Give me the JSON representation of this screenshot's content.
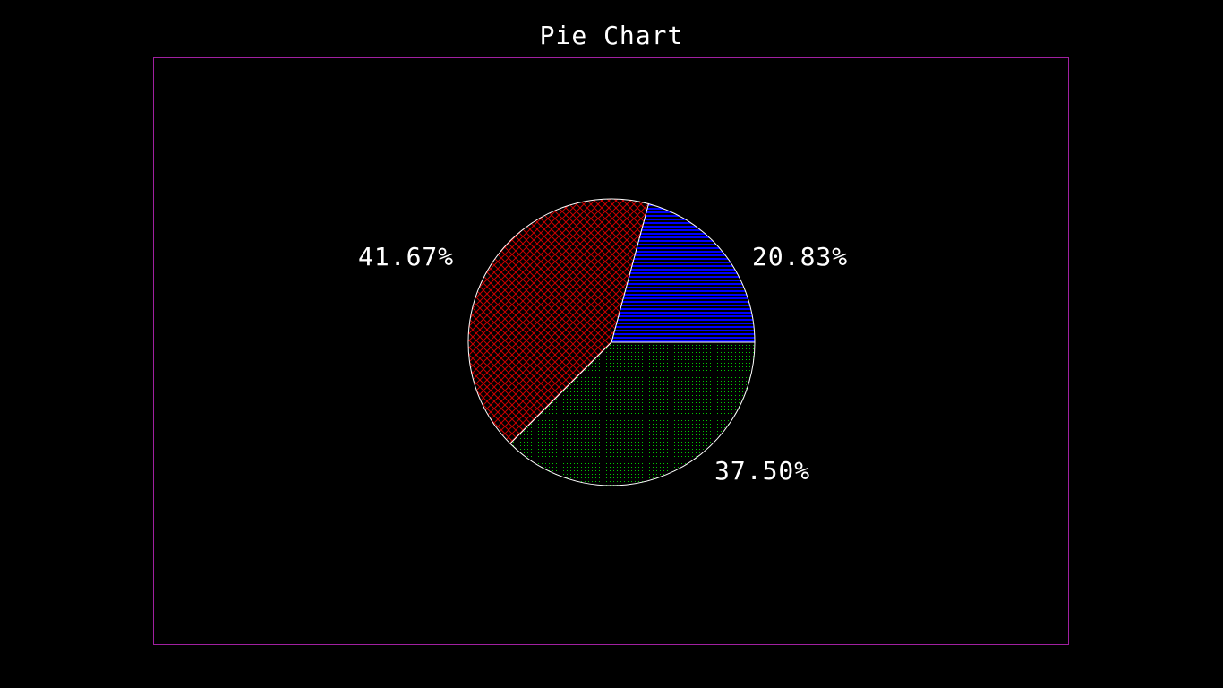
{
  "chart_data": {
    "type": "pie",
    "title": "Pie Chart",
    "slices": [
      {
        "label": "20.83%",
        "value": 20.83,
        "color": "#0000ff",
        "pattern": "horizontal-lines"
      },
      {
        "label": "37.50%",
        "value": 37.5,
        "color": "#00cc00",
        "pattern": "dots"
      },
      {
        "label": "41.67%",
        "value": 41.67,
        "color": "#cc0000",
        "pattern": "crosshatch"
      }
    ],
    "start_angle_deg": 0,
    "direction": "counterclockwise-from-east-upward-first"
  },
  "colors": {
    "background": "#000000",
    "frame": "#a020a0",
    "outline": "#ffffff",
    "text": "#ffffff"
  }
}
